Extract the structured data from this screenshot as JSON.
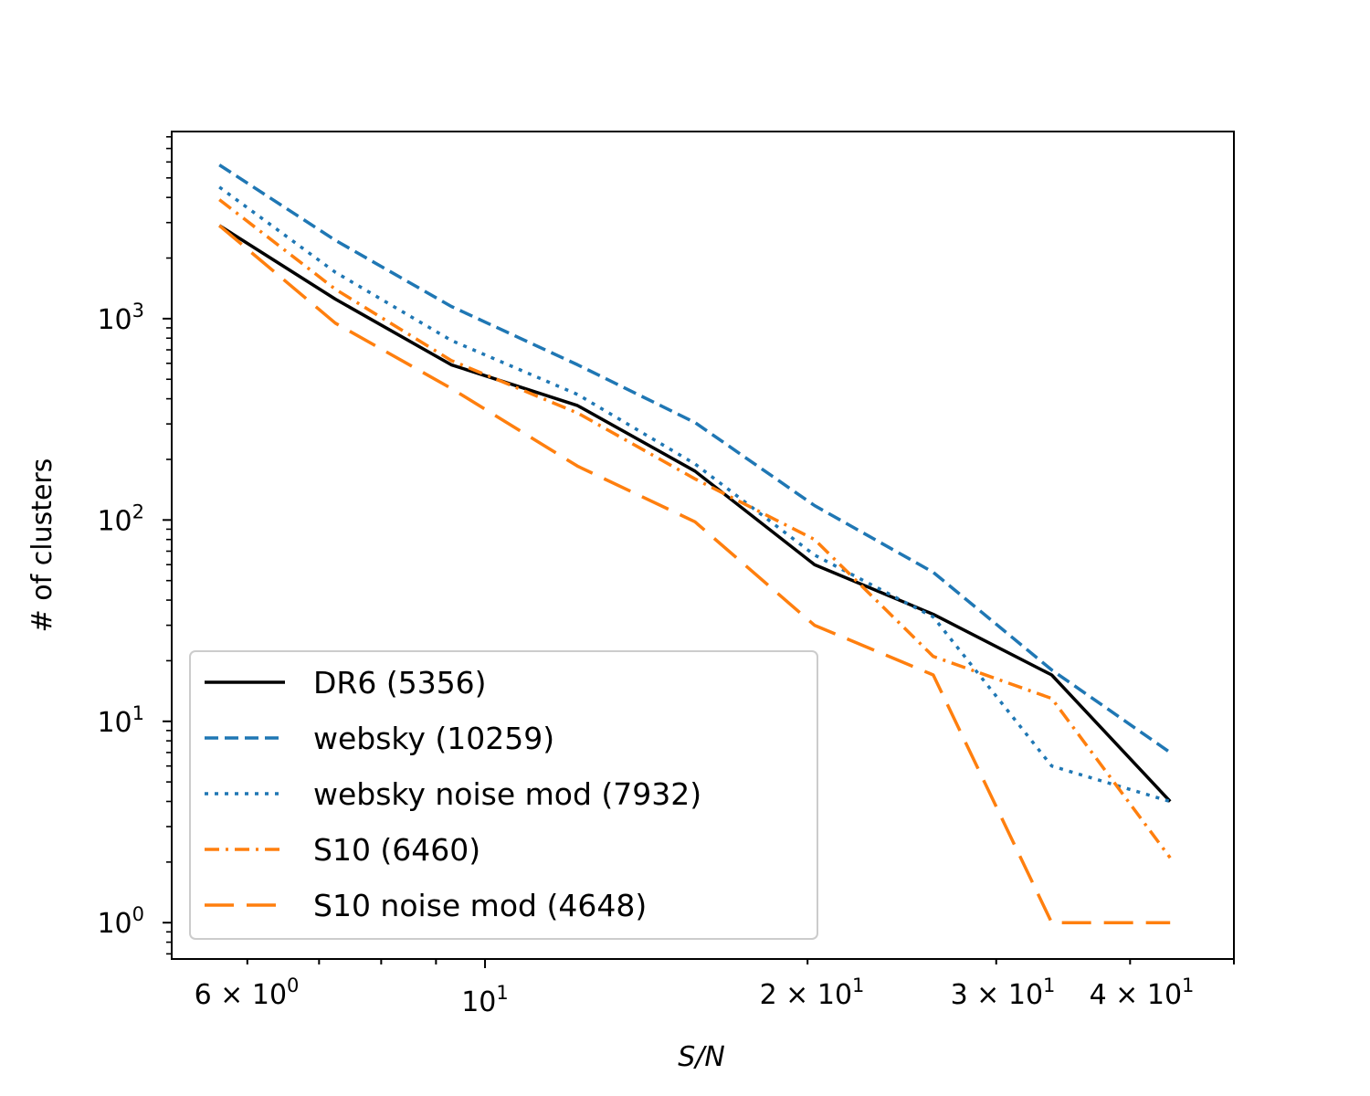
{
  "chart_data": {
    "type": "line",
    "title": "",
    "xlabel": "S/N",
    "ylabel": "# of clusters",
    "xscale": "log",
    "yscale": "log",
    "xlim": [
      5.1,
      50
    ],
    "ylim": [
      0.66,
      8500
    ],
    "grid": false,
    "legend_position": "lower-left",
    "x": [
      5.65,
      7.25,
      9.3,
      12.2,
      15.7,
      20.3,
      26.2,
      33.8,
      43.6
    ],
    "x_tick_labels": [
      "6 × 10^0",
      "10^1",
      "2 × 10^1",
      "3 × 10^1",
      "4 × 10^1"
    ],
    "y_tick_labels": [
      "10^0",
      "10^1",
      "10^2",
      "10^3"
    ],
    "series": [
      {
        "name": "DR6 (5356)",
        "color": "#000000",
        "style": "solid",
        "values": [
          2900,
          1250,
          590,
          370,
          175,
          60,
          34,
          17,
          4
        ]
      },
      {
        "name": "websky (10259)",
        "color": "#1f77b4",
        "style": "dashed",
        "values": [
          5800,
          2450,
          1150,
          590,
          305,
          118,
          55,
          18,
          7
        ]
      },
      {
        "name": "websky noise mod (7932)",
        "color": "#1f77b4",
        "style": "dotted",
        "values": [
          4500,
          1700,
          780,
          420,
          190,
          67,
          33,
          6,
          4
        ]
      },
      {
        "name": "S10 (6460)",
        "color": "#ff7f0e",
        "style": "dashdot",
        "values": [
          3900,
          1400,
          620,
          340,
          160,
          80,
          21,
          13,
          2.1
        ]
      },
      {
        "name": "S10 noise mod (4648)",
        "color": "#ff7f0e",
        "style": "longdash",
        "values": [
          2900,
          950,
          450,
          185,
          98,
          30,
          17,
          1,
          1
        ]
      }
    ]
  }
}
